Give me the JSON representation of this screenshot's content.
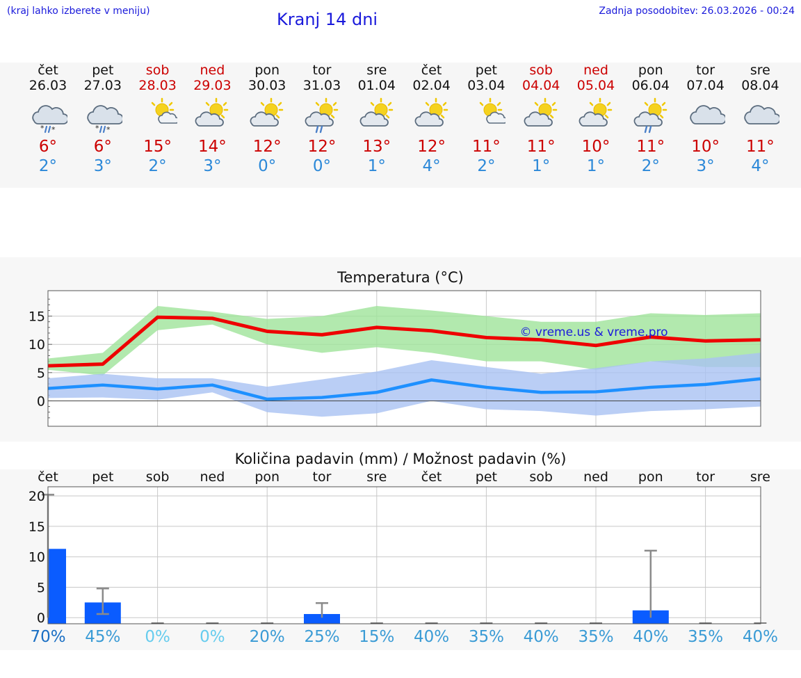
{
  "header": {
    "hint": "(kraj lahko izberete v meniju)",
    "title": "Kranj 14 dni",
    "updated": "Zadnja posodobitev: 26.03.2026 - 00:24"
  },
  "days": [
    {
      "name": "čet",
      "date": "26.03",
      "icon": "cloud-sleet-icon",
      "max": "6°",
      "min": "2°",
      "weekend": false
    },
    {
      "name": "pet",
      "date": "27.03",
      "icon": "cloud-sleet-icon",
      "max": "6°",
      "min": "3°",
      "weekend": false
    },
    {
      "name": "sob",
      "date": "28.03",
      "icon": "sun-small-cloud-icon",
      "max": "15°",
      "min": "2°",
      "weekend": true
    },
    {
      "name": "ned",
      "date": "29.03",
      "icon": "sun-cloud-icon",
      "max": "14°",
      "min": "3°",
      "weekend": true
    },
    {
      "name": "pon",
      "date": "30.03",
      "icon": "sun-cloud-icon",
      "max": "12°",
      "min": "0°",
      "weekend": false
    },
    {
      "name": "tor",
      "date": "31.03",
      "icon": "sun-cloud-rain-icon",
      "max": "12°",
      "min": "0°",
      "weekend": false
    },
    {
      "name": "sre",
      "date": "01.04",
      "icon": "sun-cloud-icon",
      "max": "13°",
      "min": "1°",
      "weekend": false
    },
    {
      "name": "čet",
      "date": "02.04",
      "icon": "sun-cloud-icon",
      "max": "12°",
      "min": "4°",
      "weekend": false
    },
    {
      "name": "pet",
      "date": "03.04",
      "icon": "sun-small-cloud-icon",
      "max": "11°",
      "min": "2°",
      "weekend": false
    },
    {
      "name": "sob",
      "date": "04.04",
      "icon": "sun-cloud-icon",
      "max": "11°",
      "min": "1°",
      "weekend": true
    },
    {
      "name": "ned",
      "date": "05.04",
      "icon": "sun-cloud-icon",
      "max": "10°",
      "min": "1°",
      "weekend": true
    },
    {
      "name": "pon",
      "date": "06.04",
      "icon": "sun-cloud-rain-icon",
      "max": "11°",
      "min": "2°",
      "weekend": false
    },
    {
      "name": "tor",
      "date": "07.04",
      "icon": "cloud-icon",
      "max": "10°",
      "min": "3°",
      "weekend": false
    },
    {
      "name": "sre",
      "date": "08.04",
      "icon": "cloud-icon",
      "max": "11°",
      "min": "4°",
      "weekend": false
    }
  ],
  "colors": {
    "weekend": "#cc0000",
    "max_line": "#ee0000",
    "min_line": "#1e90ff",
    "max_band": "#9fe39a",
    "min_band": "#a9c2f2",
    "precip_bar": "#0a5cff",
    "title_blue": "#1a1adb"
  },
  "chart_data": [
    {
      "type": "line",
      "title": "Temperatura (°C)",
      "watermark": "© vreme.us & vreme.pro",
      "x": [
        0,
        1,
        2,
        3,
        4,
        5,
        6,
        7,
        8,
        9,
        10,
        11,
        12,
        13
      ],
      "ylim": [
        -4.5,
        19.5
      ],
      "yticks": [
        0,
        5,
        10,
        15
      ],
      "series": [
        {
          "name": "max",
          "values": [
            6.2,
            6.5,
            14.8,
            14.6,
            12.3,
            11.7,
            13.0,
            12.4,
            11.2,
            10.8,
            9.8,
            11.3,
            10.6,
            10.8
          ],
          "band_low": [
            5.5,
            4.5,
            12.5,
            13.5,
            10.0,
            8.5,
            9.5,
            8.5,
            7.0,
            7.0,
            5.5,
            7.0,
            6.0,
            6.0
          ],
          "band_high": [
            7.5,
            8.5,
            16.8,
            15.8,
            14.5,
            15.0,
            16.8,
            16.0,
            15.0,
            14.0,
            14.0,
            15.5,
            15.2,
            15.5
          ]
        },
        {
          "name": "min",
          "values": [
            2.2,
            2.8,
            2.1,
            2.8,
            0.3,
            0.6,
            1.5,
            3.7,
            2.4,
            1.5,
            1.6,
            2.4,
            2.9,
            3.9
          ],
          "band_low": [
            0.5,
            0.6,
            0.2,
            1.5,
            -2.0,
            -2.8,
            -2.2,
            0.0,
            -1.5,
            -1.8,
            -2.6,
            -1.8,
            -1.5,
            -1.0
          ],
          "band_high": [
            4.0,
            4.8,
            4.0,
            4.0,
            2.5,
            3.8,
            5.2,
            7.2,
            6.0,
            4.8,
            5.8,
            7.0,
            7.5,
            8.5
          ]
        }
      ]
    },
    {
      "type": "bar",
      "title": "Količina padavin (mm) / Možnost padavin (%)",
      "categories": [
        "čet",
        "pet",
        "sob",
        "ned",
        "pon",
        "tor",
        "sre",
        "čet",
        "pet",
        "sob",
        "ned",
        "pon",
        "tor",
        "sre"
      ],
      "values": [
        11.3,
        2.5,
        0,
        0,
        0,
        0.6,
        0,
        0,
        0,
        0,
        0,
        1.2,
        0,
        0
      ],
      "err_low": [
        0,
        0.6,
        0,
        0,
        0,
        0,
        0,
        0,
        0,
        0,
        0,
        0,
        0,
        0
      ],
      "err_high": [
        20.2,
        4.8,
        0,
        0,
        0,
        2.4,
        0,
        0,
        0,
        0,
        0,
        11.0,
        0,
        0
      ],
      "probability_labels": [
        "70%",
        "45%",
        "0%",
        "0%",
        "20%",
        "25%",
        "15%",
        "40%",
        "35%",
        "40%",
        "35%",
        "40%",
        "35%",
        "40%"
      ],
      "probability_colors": [
        "#1a6fc4",
        "#3a9bd5",
        "#66ccee",
        "#66ccee",
        "#3a9bd5",
        "#3a9bd5",
        "#3a9bd5",
        "#3a9bd5",
        "#3a9bd5",
        "#3a9bd5",
        "#3a9bd5",
        "#3a9bd5",
        "#3a9bd5",
        "#3a9bd5"
      ],
      "ylim": [
        -1,
        21.5
      ],
      "yticks": [
        0,
        5,
        10,
        15,
        20
      ]
    }
  ]
}
